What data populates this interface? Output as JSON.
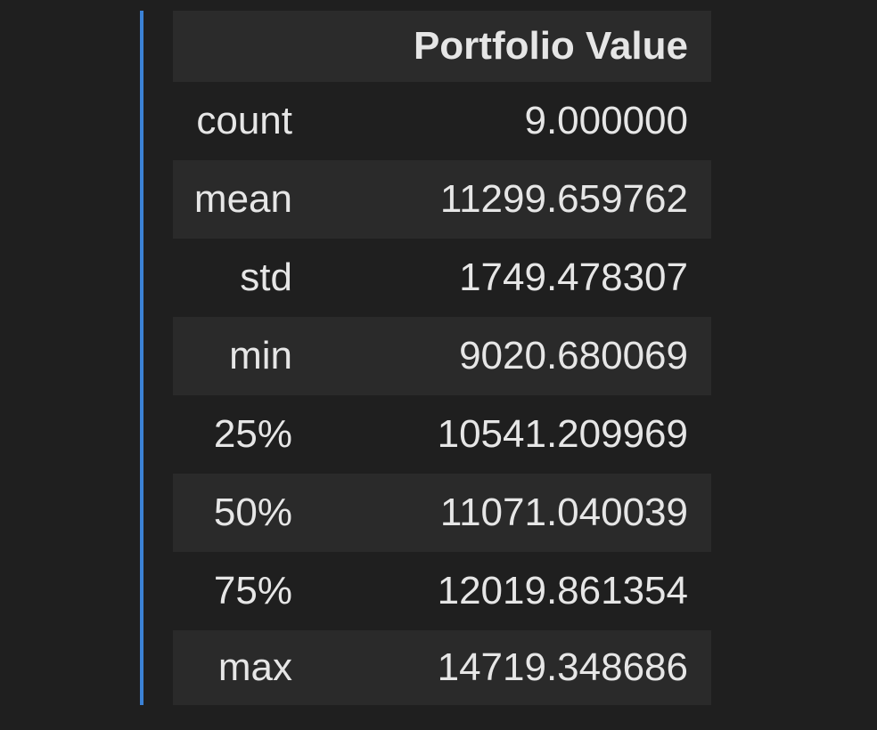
{
  "table": {
    "index_header": "",
    "column_header": "Portfolio Value",
    "rows": [
      {
        "label": "count",
        "value": "9.000000"
      },
      {
        "label": "mean",
        "value": "11299.659762"
      },
      {
        "label": "std",
        "value": "1749.478307"
      },
      {
        "label": "min",
        "value": "9020.680069"
      },
      {
        "label": "25%",
        "value": "10541.209969"
      },
      {
        "label": "50%",
        "value": "11071.040039"
      },
      {
        "label": "75%",
        "value": "12019.861354"
      },
      {
        "label": "max",
        "value": "14719.348686"
      }
    ]
  },
  "colors": {
    "background": "#1f1f1f",
    "row_alt": "#2a2a2a",
    "header_bg": "#2b2b2b",
    "focus_bar": "#3b82d6",
    "text": "#e6e6e6"
  }
}
